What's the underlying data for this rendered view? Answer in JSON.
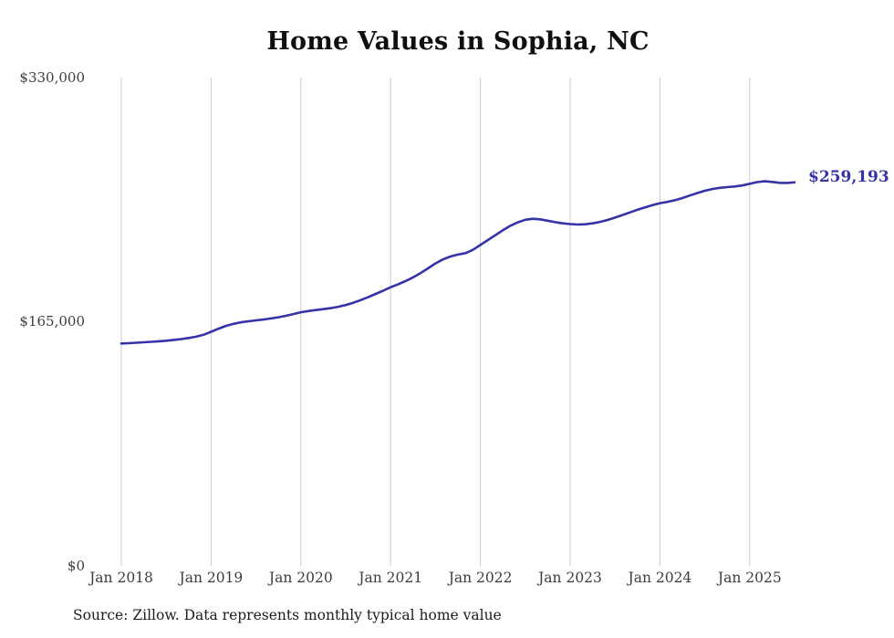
{
  "title": "Home Values in Sophia, NC",
  "source_note": "Source: Zillow. Data represents monthly typical home value",
  "colors": {
    "line": "#3533a8",
    "grid": "#cccccc",
    "tick": "#3d3d3d",
    "title": "#0f0f0f",
    "source": "#1c1c1c",
    "end_label": "#3533a8",
    "background": "#ffffff"
  },
  "chart_data": {
    "type": "line",
    "title": "Home Values in Sophia, NC",
    "xlabel": "",
    "ylabel": "",
    "x_start": "2018-01",
    "x_interval": "month",
    "ylim": [
      0,
      330000
    ],
    "y_ticks": [
      0,
      165000,
      330000
    ],
    "y_tick_labels": [
      "$0",
      "$165,000",
      "$330,000"
    ],
    "x_tick_labels": [
      "Jan 2018",
      "Jan 2019",
      "Jan 2020",
      "Jan 2021",
      "Jan 2022",
      "Jan 2023",
      "Jan 2024",
      "Jan 2025"
    ],
    "grid": "vertical-only",
    "legend": "none",
    "latest_value": 259193,
    "end_annotation": "$259,193",
    "series_name": "Typical home value",
    "values": [
      150300,
      150500,
      150800,
      151100,
      151400,
      151800,
      152200,
      152700,
      153300,
      154000,
      154900,
      156200,
      158200,
      160300,
      162200,
      163600,
      164600,
      165300,
      165900,
      166500,
      167200,
      168000,
      169000,
      170200,
      171400,
      172200,
      172900,
      173500,
      174200,
      175100,
      176300,
      177800,
      179600,
      181600,
      183800,
      186000,
      188300,
      190300,
      192500,
      195000,
      197900,
      201100,
      204400,
      207100,
      209100,
      210400,
      211300,
      213600,
      216900,
      220200,
      223500,
      226800,
      229800,
      232200,
      233900,
      234600,
      234200,
      233300,
      232300,
      231500,
      231000,
      230700,
      230900,
      231500,
      232500,
      233800,
      235400,
      237100,
      238900,
      240700,
      242300,
      243800,
      245100,
      246000,
      247100,
      248600,
      250300,
      252000,
      253500,
      254700,
      255500,
      256000,
      256400,
      257100,
      258200,
      259400,
      259900,
      259500,
      258900,
      258800,
      259193
    ],
    "source": "Source: Zillow. Data represents monthly typical home value"
  }
}
